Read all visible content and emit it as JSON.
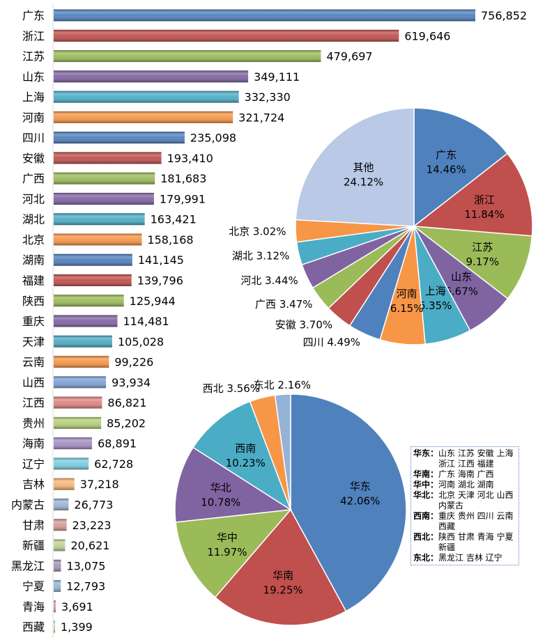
{
  "chart_data": [
    {
      "type": "bar",
      "orientation": "horizontal",
      "categories": [
        "广东",
        "浙江",
        "江苏",
        "山东",
        "上海",
        "河南",
        "四川",
        "安徽",
        "广西",
        "河北",
        "湖北",
        "北京",
        "湖南",
        "福建",
        "陕西",
        "重庆",
        "天津",
        "云南",
        "山西",
        "江西",
        "贵州",
        "海南",
        "辽宁",
        "吉林",
        "内蒙古",
        "甘肃",
        "新疆",
        "黑龙江",
        "宁夏",
        "青海",
        "西藏"
      ],
      "values": [
        756852,
        619646,
        479697,
        349111,
        332330,
        321724,
        235098,
        193410,
        181683,
        179991,
        163421,
        158168,
        141145,
        139796,
        125944,
        114481,
        105028,
        99226,
        93934,
        86821,
        85202,
        68891,
        62728,
        37218,
        26773,
        23223,
        20621,
        13075,
        12793,
        3691,
        1399
      ],
      "value_labels": [
        "756,852",
        "619,646",
        "479,697",
        "349,111",
        "332,330",
        "321,724",
        "235,098",
        "193,410",
        "181,683",
        "179,991",
        "163,421",
        "158,168",
        "141,145",
        "139,796",
        "125,944",
        "114,481",
        "105,028",
        "99,226",
        "93,934",
        "86,821",
        "85,202",
        "68,891",
        "62,728",
        "37,218",
        "26,773",
        "23,223",
        "20,621",
        "13,075",
        "12,793",
        "3,691",
        "1,399"
      ],
      "colors": [
        "#4f81bd",
        "#c0504d",
        "#9bbb59",
        "#8064a2",
        "#4bacc6",
        "#f79646",
        "#4f81bd",
        "#c0504d",
        "#9bbb59",
        "#8064a2",
        "#4bacc6",
        "#f79646",
        "#4f81bd",
        "#c0504d",
        "#9bbb59",
        "#8064a2",
        "#4bacc6",
        "#f79646",
        "#7ea1d6",
        "#e08481",
        "#b5d07a",
        "#a58dc4",
        "#7bcde0",
        "#f9b57a",
        "#9db3d4",
        "#d99a98",
        "#bfd39a",
        "#a394bb",
        "#95b3d7",
        "#d99694",
        "#c3d69b"
      ],
      "xlim": [
        0,
        756852
      ]
    },
    {
      "type": "pie",
      "start": "top",
      "direction": "clockwise",
      "labels": [
        "广东",
        "浙江",
        "江苏",
        "山东",
        "上海",
        "河南",
        "四川",
        "安徽",
        "广西",
        "河北",
        "湖北",
        "北京",
        "其他"
      ],
      "values": [
        14.46,
        11.84,
        9.17,
        6.67,
        6.35,
        6.15,
        4.49,
        3.7,
        3.47,
        3.44,
        3.12,
        3.02,
        24.12
      ],
      "value_labels": [
        "14.46%",
        "11.84%",
        "9.17%",
        "6.67%",
        "6.35%",
        "6.15%",
        "4.49%",
        "3.70%",
        "3.47%",
        "3.44%",
        "3.12%",
        "3.02%",
        "24.12%"
      ],
      "label_position": [
        "inside",
        "inside",
        "inside",
        "inside",
        "inside",
        "inside",
        "outside",
        "outside",
        "outside",
        "outside",
        "outside",
        "outside",
        "inside"
      ],
      "colors": [
        "#4f81bd",
        "#c0504d",
        "#9bbb59",
        "#8064a2",
        "#4bacc6",
        "#f79646",
        "#4f81bd",
        "#c0504d",
        "#9bbb59",
        "#8064a2",
        "#4bacc6",
        "#f79646",
        "#b9c9e6"
      ]
    },
    {
      "type": "pie",
      "start": "top",
      "direction": "clockwise",
      "labels": [
        "华东",
        "华南",
        "华中",
        "华北",
        "西南",
        "西北",
        "东北"
      ],
      "values": [
        42.06,
        19.25,
        11.97,
        10.78,
        10.23,
        3.56,
        2.16
      ],
      "value_labels": [
        "42.06%",
        "19.25%",
        "11.97%",
        "10.78%",
        "10.23%",
        "3.56%",
        "2.16%"
      ],
      "label_position": [
        "inside",
        "inside",
        "inside",
        "inside",
        "inside",
        "outside",
        "outside"
      ],
      "colors": [
        "#4f81bd",
        "#c0504d",
        "#9bbb59",
        "#8064a2",
        "#4bacc6",
        "#f79646",
        "#95b3d7"
      ]
    }
  ],
  "legend": [
    {
      "key": "华东：",
      "value": "山东 江苏 安徽 上海 浙江 江西 福建"
    },
    {
      "key": "华南：",
      "value": "广东 海南 广西"
    },
    {
      "key": "华中：",
      "value": "河南 湖北 湖南"
    },
    {
      "key": "华北：",
      "value": "北京 天津 河北 山西 内蒙古"
    },
    {
      "key": "西南：",
      "value": "重庆 贵州 四川 云南 西藏"
    },
    {
      "key": "西北：",
      "value": "陕西 甘肃 青海 宁夏 新疆"
    },
    {
      "key": "东北：",
      "value": "黑龙江 吉林 辽宁"
    }
  ]
}
